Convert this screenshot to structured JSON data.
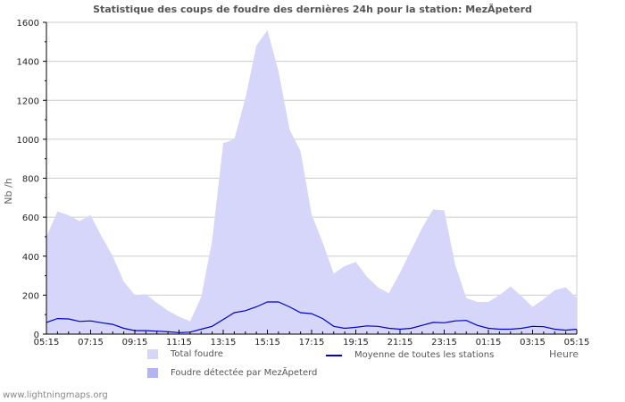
{
  "title": "Statistique des coups de foudre des dernières 24h pour la station: MezÃ\u001fpeterd",
  "footer": "www.lightningmaps.org",
  "colors": {
    "total_fill": "#d6d6fa",
    "station_fill": "#b4b4f0",
    "average_line": "#0000cc",
    "grid": "#cccccc"
  },
  "legend": {
    "total": "Total foudre",
    "station": "Foudre détectée par MezÃ\u001fpeterd",
    "average": "Moyenne de toutes les stations"
  },
  "chart_data": {
    "type": "area",
    "title": "Statistique des coups de foudre des dernières 24h pour la station: MezÃ\u001fpeterd",
    "xlabel": "Heure",
    "ylabel": "Nb /h",
    "ylim": [
      0,
      1600
    ],
    "yticks": [
      0,
      200,
      400,
      600,
      800,
      1000,
      1200,
      1400,
      1600
    ],
    "xticks": [
      "05:15",
      "07:15",
      "09:15",
      "11:15",
      "13:15",
      "15:15",
      "17:15",
      "19:15",
      "21:15",
      "23:15",
      "01:15",
      "03:15",
      "05:15"
    ],
    "grid": true,
    "legend_position": "bottom",
    "x_hours_from_start": [
      0,
      0.5,
      1,
      1.5,
      2,
      2.5,
      3,
      3.5,
      4,
      4.5,
      5,
      5.5,
      6,
      6.5,
      7,
      7.5,
      8,
      8.5,
      9,
      9.5,
      10,
      10.5,
      11,
      11.5,
      12,
      12.5,
      13,
      13.5,
      14,
      14.5,
      15,
      15.5,
      16,
      16.5,
      17,
      17.5,
      18,
      18.5,
      19,
      19.5,
      20,
      20.5,
      21,
      21.5,
      22,
      22.5,
      23,
      23.5,
      24
    ],
    "series": [
      {
        "name": "Total foudre",
        "kind": "area",
        "values": [
          500,
          630,
          610,
          580,
          610,
          500,
          400,
          270,
          200,
          205,
          160,
          120,
          90,
          65,
          190,
          480,
          980,
          1000,
          1210,
          1480,
          1560,
          1350,
          1050,
          940,
          615,
          470,
          310,
          350,
          370,
          295,
          240,
          210,
          315,
          430,
          545,
          640,
          635,
          355,
          185,
          165,
          165,
          200,
          245,
          195,
          140,
          180,
          225,
          240,
          185
        ]
      },
      {
        "name": "Foudre détectée par MezÃ\u001fpeterd",
        "kind": "area",
        "values": [
          0,
          0,
          0,
          0,
          0,
          0,
          0,
          0,
          0,
          0,
          0,
          0,
          0,
          0,
          0,
          0,
          0,
          0,
          0,
          0,
          0,
          0,
          0,
          0,
          0,
          0,
          0,
          0,
          0,
          0,
          0,
          0,
          0,
          0,
          0,
          0,
          0,
          0,
          0,
          0,
          0,
          0,
          0,
          0,
          0,
          0,
          0,
          0,
          0
        ]
      },
      {
        "name": "Moyenne de toutes les stations",
        "kind": "line",
        "values": [
          60,
          80,
          78,
          65,
          68,
          58,
          50,
          30,
          18,
          18,
          15,
          12,
          8,
          10,
          25,
          40,
          75,
          110,
          120,
          140,
          165,
          165,
          140,
          110,
          105,
          80,
          40,
          30,
          35,
          42,
          40,
          30,
          25,
          30,
          45,
          60,
          58,
          68,
          70,
          45,
          30,
          25,
          25,
          30,
          40,
          38,
          25,
          20,
          25
        ]
      }
    ]
  }
}
